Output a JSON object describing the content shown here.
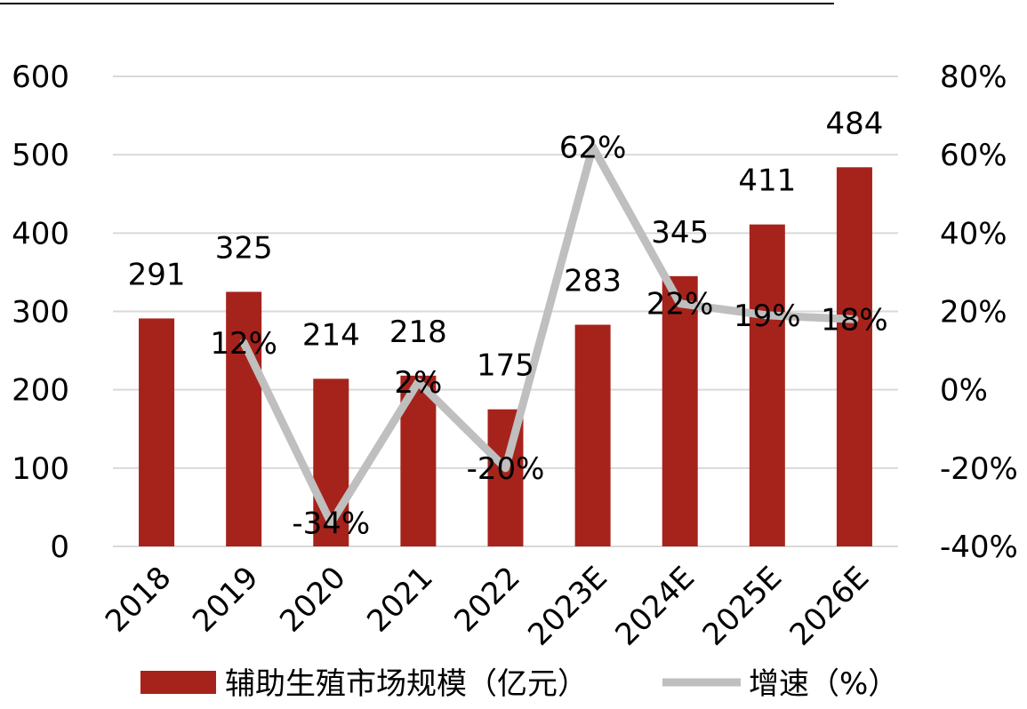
{
  "chart_data": {
    "type": "bar",
    "categories": [
      "2018",
      "2019",
      "2020",
      "2021",
      "2022",
      "2023E",
      "2024E",
      "2025E",
      "2026E"
    ],
    "series": [
      {
        "name": "辅助生殖市场规模（亿元）",
        "kind": "bar",
        "axis": "left",
        "color": "#A6231B",
        "values": [
          291,
          325,
          214,
          218,
          175,
          283,
          345,
          411,
          484
        ],
        "labels": [
          "291",
          "325",
          "214",
          "218",
          "175",
          "283",
          "345",
          "411",
          "484"
        ]
      },
      {
        "name": "增速（%）",
        "kind": "line",
        "axis": "right",
        "color": "#BFBFBF",
        "values": [
          null,
          12,
          -34,
          2,
          -20,
          62,
          22,
          19,
          18
        ],
        "labels": [
          "",
          "12%",
          "-34%",
          "2%",
          "-20%",
          "62%",
          "22%",
          "19%",
          "18%"
        ]
      }
    ],
    "y_left": {
      "range": [
        0,
        600
      ],
      "ticks": [
        "0",
        "100",
        "200",
        "300",
        "400",
        "500",
        "600"
      ]
    },
    "y_right": {
      "range": [
        -40,
        80
      ],
      "ticks": [
        "-40%",
        "-20%",
        "0%",
        "20%",
        "40%",
        "60%",
        "80%"
      ]
    },
    "grid": true,
    "gridline_color": "#D9D9D9",
    "legend_position": "bottom"
  }
}
